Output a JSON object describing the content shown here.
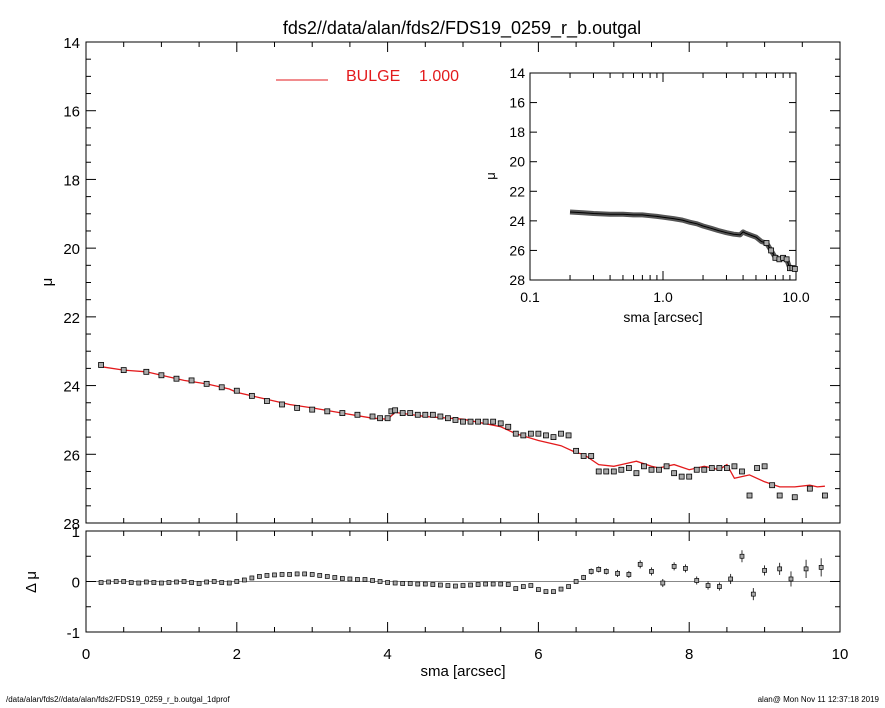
{
  "title": "fds2//data/alan/fds2/FDS19_0259_r_b.outgal",
  "footer_left": "/data/alan/fds2//data/alan/fds2/FDS19_0259_r_b.outgal_1dprof",
  "footer_right": "alan@  Mon Nov 11 12:37:18 2019",
  "colors": {
    "model": "#e31a1c",
    "data": "#000000",
    "zero_line": "#888888"
  },
  "chart_data": [
    {
      "id": "main",
      "type": "scatter",
      "ylabel": "μ",
      "xlim": [
        0,
        10
      ],
      "ylim": [
        28,
        14
      ],
      "y_inverted": true,
      "yticks": [
        14,
        16,
        18,
        20,
        22,
        24,
        26,
        28
      ],
      "legend": {
        "label": "BULGE",
        "value": "1.000",
        "placement": "top-center"
      },
      "series": [
        {
          "name": "BULGE",
          "type": "line",
          "x": [
            0.2,
            0.5,
            0.8,
            1.0,
            1.3,
            1.6,
            1.9,
            2.0,
            2.3,
            2.7,
            3.0,
            3.4,
            3.8,
            4.0,
            4.1,
            4.5,
            5.0,
            5.5,
            5.7,
            6.0,
            6.3,
            6.5,
            6.6,
            6.8,
            7.0,
            7.1,
            7.3,
            7.5,
            7.6,
            7.8,
            8.0,
            8.2,
            8.4,
            8.5,
            8.6,
            8.8,
            9.0,
            9.2,
            9.4,
            9.6,
            9.7,
            9.8
          ],
          "y": [
            23.45,
            23.55,
            23.6,
            23.7,
            23.85,
            23.95,
            24.1,
            24.2,
            24.35,
            24.55,
            24.65,
            24.8,
            24.95,
            24.98,
            24.78,
            24.9,
            24.98,
            25.2,
            25.4,
            25.6,
            25.75,
            25.95,
            26.0,
            26.3,
            26.35,
            26.3,
            26.2,
            26.35,
            26.4,
            26.3,
            26.45,
            26.35,
            26.45,
            26.3,
            26.7,
            26.6,
            26.8,
            26.95,
            26.95,
            26.9,
            26.95,
            26.93
          ]
        },
        {
          "name": "",
          "type": "scatter",
          "x": [
            0.2,
            0.5,
            0.8,
            1.0,
            1.2,
            1.4,
            1.6,
            1.8,
            2.0,
            2.2,
            2.4,
            2.6,
            2.8,
            3.0,
            3.2,
            3.4,
            3.6,
            3.8,
            3.9,
            4.0,
            4.05,
            4.1,
            4.2,
            4.3,
            4.4,
            4.5,
            4.6,
            4.7,
            4.8,
            4.9,
            5.0,
            5.1,
            5.2,
            5.3,
            5.4,
            5.5,
            5.6,
            5.7,
            5.8,
            5.9,
            6.0,
            6.1,
            6.2,
            6.3,
            6.4,
            6.5,
            6.6,
            6.7,
            6.8,
            6.9,
            7.0,
            7.1,
            7.2,
            7.3,
            7.4,
            7.5,
            7.6,
            7.7,
            7.8,
            7.9,
            8.0,
            8.1,
            8.2,
            8.3,
            8.4,
            8.5,
            8.6,
            8.7,
            8.8,
            8.9,
            9.0,
            9.1,
            9.2,
            9.4,
            9.6,
            9.8
          ],
          "y": [
            23.4,
            23.55,
            23.6,
            23.7,
            23.8,
            23.85,
            23.95,
            24.05,
            24.15,
            24.3,
            24.45,
            24.55,
            24.65,
            24.7,
            24.75,
            24.8,
            24.85,
            24.9,
            24.95,
            24.95,
            24.75,
            24.72,
            24.8,
            24.8,
            24.85,
            24.85,
            24.85,
            24.9,
            24.95,
            25.0,
            25.05,
            25.05,
            25.05,
            25.05,
            25.05,
            25.1,
            25.2,
            25.4,
            25.45,
            25.4,
            25.4,
            25.45,
            25.5,
            25.4,
            25.45,
            25.9,
            26.05,
            26.05,
            26.5,
            26.5,
            26.5,
            26.45,
            26.4,
            26.55,
            26.35,
            26.45,
            26.45,
            26.35,
            26.55,
            26.65,
            26.65,
            26.45,
            26.45,
            26.4,
            26.4,
            26.4,
            26.35,
            26.5,
            27.2,
            26.4,
            26.35,
            26.9,
            27.2,
            27.25,
            27.0,
            27.2
          ]
        }
      ]
    },
    {
      "id": "inset",
      "type": "scatter",
      "xlabel": "sma [arcsec]",
      "ylabel": "μ",
      "x_scale": "log",
      "xlim": [
        0.1,
        10.0
      ],
      "xticks": [
        "0.1",
        "1.0",
        "10.0"
      ],
      "ylim": [
        28,
        14
      ],
      "y_inverted": true,
      "yticks": [
        14,
        16,
        18,
        20,
        22,
        24,
        26,
        28
      ],
      "series": [
        {
          "name": "",
          "type": "scatter",
          "x": [
            0.2,
            0.25,
            0.3,
            0.4,
            0.5,
            0.6,
            0.7,
            0.8,
            0.9,
            1.0,
            1.2,
            1.4,
            1.6,
            1.8,
            2.0,
            2.3,
            2.6,
            3.0,
            3.4,
            3.8,
            4.0,
            4.2,
            4.5,
            5.0,
            5.5,
            6.0,
            6.5,
            7.0,
            7.5,
            8.0,
            8.5,
            9.0,
            9.4,
            9.8
          ],
          "y": [
            23.4,
            23.45,
            23.5,
            23.55,
            23.55,
            23.6,
            23.6,
            23.65,
            23.7,
            23.75,
            23.85,
            23.95,
            24.1,
            24.2,
            24.35,
            24.5,
            24.65,
            24.8,
            24.9,
            24.95,
            24.75,
            24.85,
            24.95,
            25.1,
            25.4,
            25.5,
            26.0,
            26.5,
            26.6,
            26.5,
            26.6,
            27.2,
            27.2,
            27.25
          ]
        }
      ]
    },
    {
      "id": "residual",
      "type": "scatter",
      "xlabel": "sma [arcsec]",
      "ylabel": "Δ μ",
      "xlim": [
        0,
        10
      ],
      "xticks": [
        0,
        2,
        4,
        6,
        8,
        10
      ],
      "ylim": [
        -1,
        1
      ],
      "yticks": [
        -1,
        0,
        1
      ],
      "series": [
        {
          "name": "",
          "type": "scatter",
          "x": [
            0.2,
            0.3,
            0.4,
            0.5,
            0.6,
            0.7,
            0.8,
            0.9,
            1.0,
            1.1,
            1.2,
            1.3,
            1.4,
            1.5,
            1.6,
            1.7,
            1.8,
            1.9,
            2.0,
            2.1,
            2.2,
            2.3,
            2.4,
            2.5,
            2.6,
            2.7,
            2.8,
            2.9,
            3.0,
            3.1,
            3.2,
            3.3,
            3.4,
            3.5,
            3.6,
            3.7,
            3.8,
            3.9,
            4.0,
            4.1,
            4.2,
            4.3,
            4.4,
            4.5,
            4.6,
            4.7,
            4.8,
            4.9,
            5.0,
            5.1,
            5.2,
            5.3,
            5.4,
            5.5,
            5.6,
            5.7,
            5.8,
            5.9,
            6.0,
            6.1,
            6.2,
            6.3,
            6.4,
            6.5,
            6.6,
            6.7,
            6.8,
            6.9,
            7.05,
            7.2,
            7.35,
            7.5,
            7.65,
            7.8,
            7.95,
            8.1,
            8.25,
            8.4,
            8.55,
            8.7,
            8.85,
            9.0,
            9.2,
            9.35,
            9.55,
            9.75
          ],
          "y": [
            -0.02,
            -0.01,
            0.0,
            0.0,
            -0.02,
            -0.03,
            -0.01,
            -0.02,
            -0.03,
            -0.02,
            -0.01,
            0.0,
            -0.02,
            -0.04,
            -0.01,
            0.0,
            -0.02,
            -0.03,
            0.0,
            0.03,
            0.07,
            0.1,
            0.12,
            0.13,
            0.14,
            0.14,
            0.15,
            0.15,
            0.14,
            0.12,
            0.1,
            0.08,
            0.06,
            0.05,
            0.04,
            0.04,
            0.02,
            0.0,
            -0.02,
            -0.03,
            -0.04,
            -0.04,
            -0.05,
            -0.05,
            -0.06,
            -0.07,
            -0.08,
            -0.09,
            -0.08,
            -0.07,
            -0.06,
            -0.05,
            -0.05,
            -0.05,
            -0.06,
            -0.14,
            -0.1,
            -0.08,
            -0.16,
            -0.2,
            -0.2,
            -0.15,
            -0.1,
            0.0,
            0.08,
            0.2,
            0.24,
            0.2,
            0.16,
            0.14,
            0.34,
            0.2,
            -0.03,
            0.3,
            0.26,
            0.02,
            -0.08,
            -0.1,
            0.05,
            0.5,
            -0.25,
            0.22,
            0.25,
            0.05,
            0.25,
            0.28
          ],
          "yerr": [
            0.01,
            0.01,
            0.01,
            0.01,
            0.01,
            0.01,
            0.01,
            0.01,
            0.01,
            0.01,
            0.01,
            0.01,
            0.01,
            0.01,
            0.01,
            0.01,
            0.01,
            0.01,
            0.01,
            0.01,
            0.01,
            0.01,
            0.01,
            0.01,
            0.01,
            0.01,
            0.01,
            0.01,
            0.01,
            0.01,
            0.01,
            0.01,
            0.01,
            0.01,
            0.01,
            0.01,
            0.01,
            0.01,
            0.01,
            0.01,
            0.02,
            0.02,
            0.02,
            0.02,
            0.02,
            0.02,
            0.02,
            0.02,
            0.02,
            0.02,
            0.02,
            0.02,
            0.02,
            0.02,
            0.02,
            0.03,
            0.03,
            0.03,
            0.03,
            0.03,
            0.03,
            0.03,
            0.04,
            0.04,
            0.05,
            0.06,
            0.06,
            0.06,
            0.07,
            0.07,
            0.08,
            0.08,
            0.08,
            0.08,
            0.08,
            0.08,
            0.08,
            0.08,
            0.1,
            0.12,
            0.12,
            0.1,
            0.12,
            0.15,
            0.18,
            0.18
          ]
        }
      ]
    }
  ]
}
